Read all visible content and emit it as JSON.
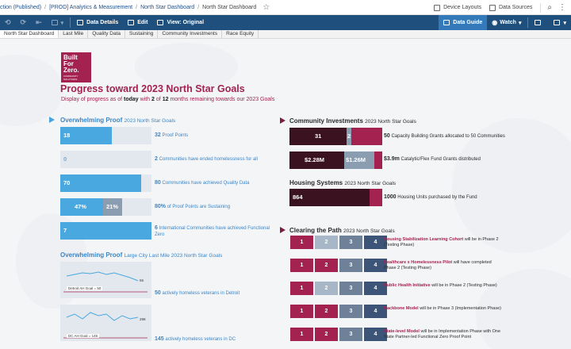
{
  "breadcrumb": {
    "items": [
      "ction (Published)",
      "[PROD] Analytics & Measurement",
      "North Star Dashboard"
    ],
    "current": "North Star Dashboard"
  },
  "topbar": {
    "device_layouts": "Device Layouts",
    "data_sources": "Data Sources"
  },
  "toolbar": {
    "data_details": "Data Details",
    "edit": "Edit",
    "view_original": "View: Original",
    "data_guide": "Data Guide",
    "watch": "Watch"
  },
  "tabs": [
    "North Star Dashboard",
    "Last Mile",
    "Quality Data",
    "Sustaining",
    "Community Investments",
    "Race Equity"
  ],
  "logo": {
    "line1": "Built",
    "line2": "For",
    "line3": "Zero.",
    "tag": "COMMUNITY SOLUTIONS"
  },
  "header": {
    "title": "Progress toward 2023 North Star Goals",
    "sub_pre": "Display of progress as of",
    "sub_today": "today",
    "sub_with": "with",
    "sub_n": "2",
    "sub_of": "of",
    "sub_total": "12",
    "sub_post": "months remaining towards our 2023 Goals"
  },
  "overwhelming": {
    "title": "Overwhelming Proof",
    "subtitle": "2023 North Star Goals",
    "bars": [
      {
        "value": "18",
        "fill": 0.56,
        "goal": "32",
        "label": "Proof Points"
      },
      {
        "value": "0",
        "fill": 0.0,
        "goal": "2",
        "label": "Communities have ended homelessness for all"
      },
      {
        "value": "70",
        "fill": 0.88,
        "goal": "80",
        "label": "Communities have achieved Quality Data"
      },
      {
        "value": "47%",
        "value2": "21%",
        "fill": 0.47,
        "fill2": 0.21,
        "goal": "80%",
        "label": "of Proof Points are Sustaining"
      },
      {
        "value": "7",
        "fill": 1.0,
        "goal": "6",
        "label": "International Communities have achieved Functional Zero"
      }
    ]
  },
  "lastmile": {
    "title": "Overwhelming Proof",
    "subtitle": "Large City Last Mile 2023 North Star Goals",
    "items": [
      {
        "goal_text": "Detroit AH Goal = 50",
        "end_value": "56",
        "count": "50",
        "label": "actively homeless veterans in Detroit"
      },
      {
        "goal_text": "DC AH Goal = 145",
        "end_value": "298",
        "count": "145",
        "label": "actively homeless veterans in DC"
      }
    ]
  },
  "community": {
    "title": "Community Investments",
    "subtitle": "2023 North Star Goals",
    "bars": [
      {
        "seg1": "31",
        "seg2": "2",
        "goal": "50",
        "label": "Capacity Building Grants allocated to 50 Communities"
      },
      {
        "seg1": "$2.28M",
        "seg2": "$1.26M",
        "goal": "$3.9m",
        "label": "Catalytic/Flex Fund Grants distributed"
      }
    ]
  },
  "housing": {
    "title": "Housing Systems",
    "subtitle": "2023 North Star Goals",
    "bar": {
      "value": "864",
      "goal": "1000",
      "label": "Housing Units purchased by the Fund"
    }
  },
  "clearing": {
    "title": "Clearing the Path",
    "subtitle": "2023 North Star Goals",
    "rows": [
      {
        "name": "Housing Stabilization Learning Cohort",
        "rest": "will be in Phase 2 (Testing Phase)",
        "done": 1
      },
      {
        "name": "Healthcare x Homelessness Pilot",
        "rest": "will have completed Phase 2 (Testing Phase)",
        "done": 2
      },
      {
        "name": "Public Health Initiative",
        "rest": "will be in Phase 2 (Testing Phase)",
        "done": 1
      },
      {
        "name": "Backbone Model",
        "rest": "will be in Phase 3 (Implementation Phase)",
        "done": 2
      },
      {
        "name": "State-level Model",
        "rest": "will be in Implementation Phase with One State Partner-led Functional Zero Proof Point",
        "done": 2
      }
    ],
    "phase_numbers": [
      "1",
      "2",
      "3",
      "4"
    ]
  }
}
